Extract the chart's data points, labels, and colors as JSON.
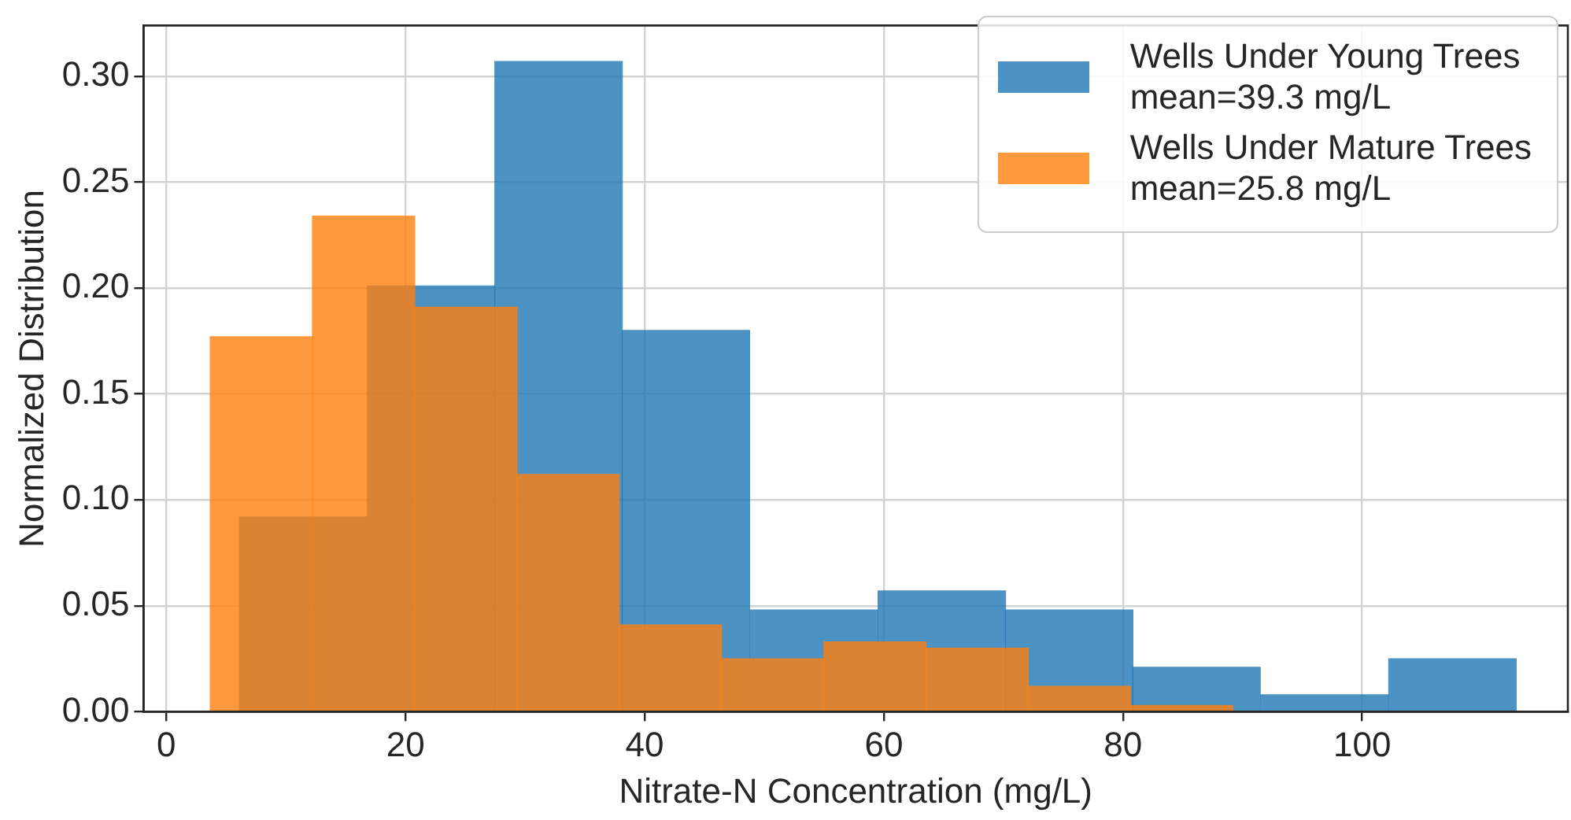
{
  "chart_data": {
    "type": "histogram",
    "bins": [
      6.1,
      16.8,
      27.5,
      38.1,
      48.8,
      59.5,
      70.2,
      80.8,
      91.5,
      102.2,
      112.9
    ],
    "xlabel": "Nitrate-N Concentration (mg/L)",
    "ylabel": "Normalized Distribution",
    "series": [
      {
        "name": "Wells Under Young Trees\nmean=39.3 mg/L",
        "color": "#1f77b4",
        "values": [
          0.092,
          0.201,
          0.307,
          0.18,
          0.048,
          0.057,
          0.048,
          0.021,
          0.008,
          0.025
        ]
      },
      {
        "name": "Wells Under Mature Trees\nmean=25.8 mg/L",
        "color": "#ff7f0e",
        "bins": [
          3.7,
          12.2,
          20.8,
          29.3,
          37.9,
          46.4,
          55.0,
          63.5,
          72.1,
          80.6,
          89.2
        ],
        "values": [
          0.177,
          0.234,
          0.191,
          0.112,
          0.041,
          0.025,
          0.033,
          0.03,
          0.012,
          0.003
        ]
      }
    ],
    "xlim": [
      -1.9,
      117.2
    ],
    "ylim": [
      0,
      0.324
    ],
    "xticks": [
      0,
      20,
      40,
      60,
      80,
      100
    ],
    "yticks": [
      {
        "value": 0,
        "label": "0.00"
      },
      {
        "value": 0.05,
        "label": "0.05"
      },
      {
        "value": 0.1,
        "label": "0.10"
      },
      {
        "value": 0.15,
        "label": "0.15"
      },
      {
        "value": 0.2,
        "label": "0.20"
      },
      {
        "value": 0.25,
        "label": "0.25"
      },
      {
        "value": 0.3,
        "label": "0.30"
      }
    ],
    "grid": true,
    "legend": "top right"
  }
}
